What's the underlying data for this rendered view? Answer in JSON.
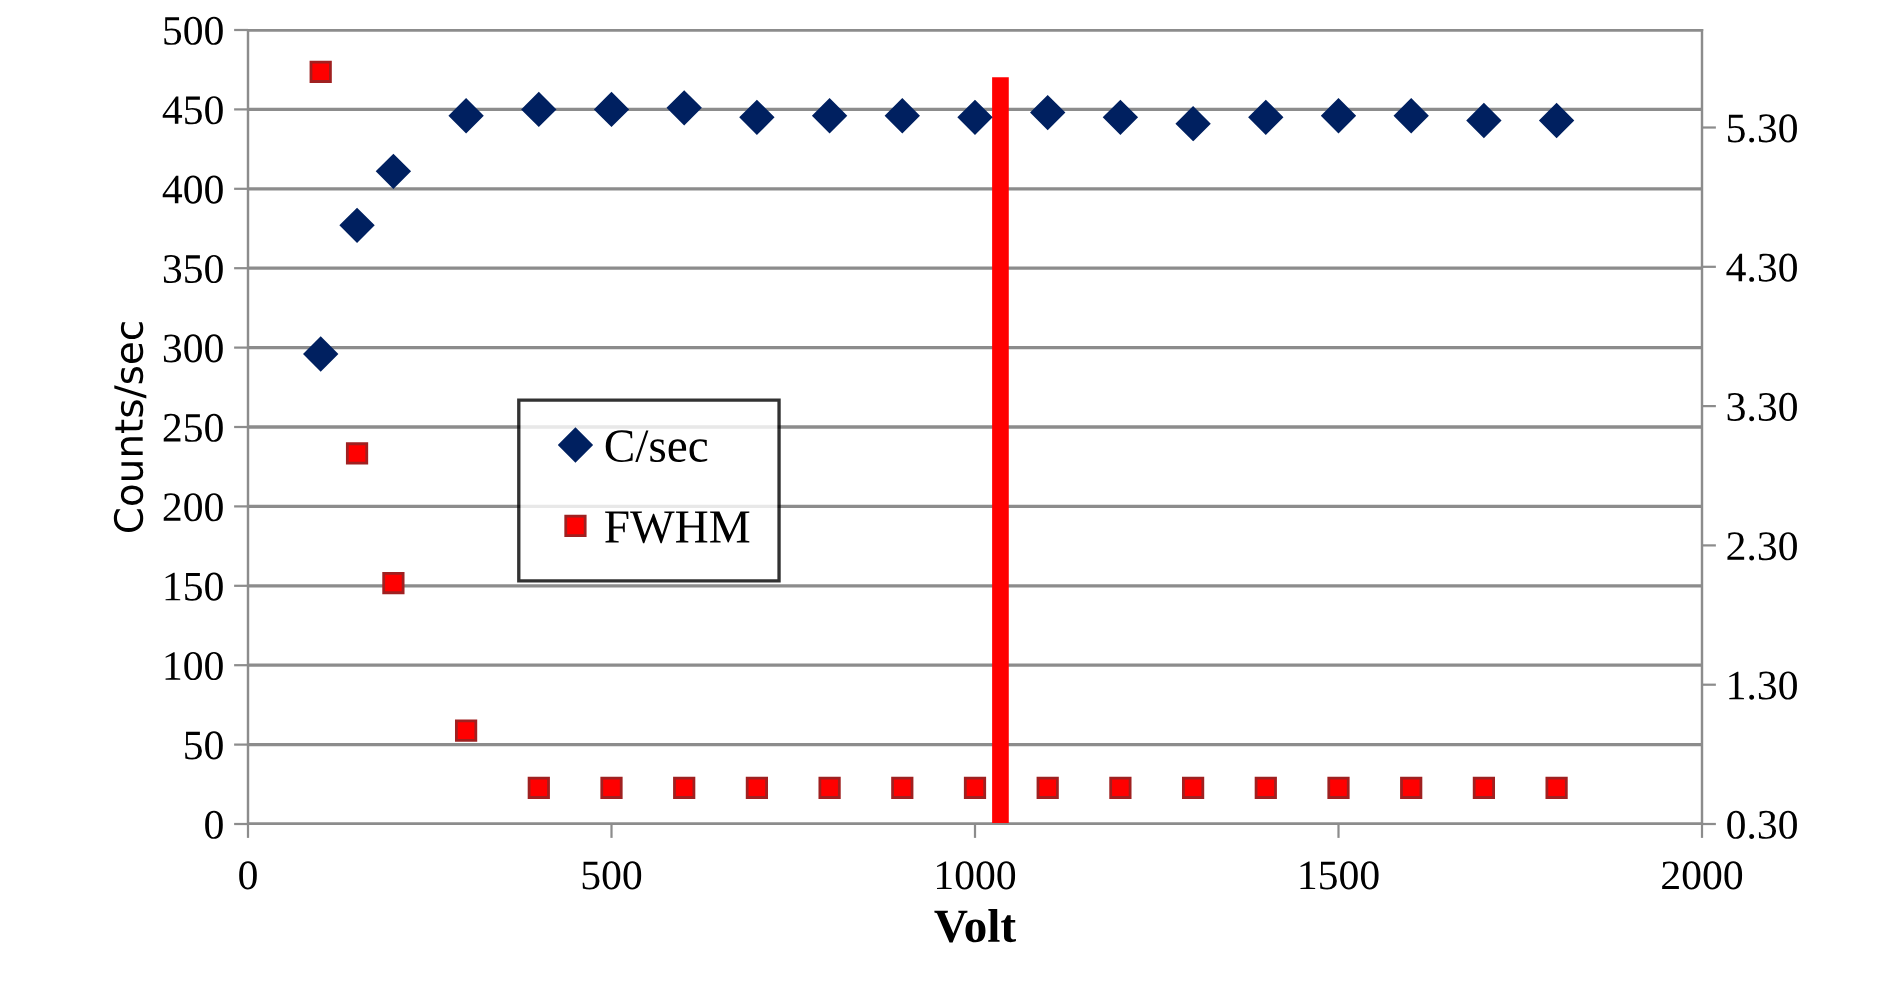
{
  "chart_data": {
    "type": "scatter",
    "xlabel": "Volt",
    "ylabel": "Counts/sec",
    "x": [
      100,
      150,
      200,
      300,
      400,
      500,
      600,
      700,
      800,
      900,
      1000,
      1100,
      1200,
      1300,
      1400,
      1500,
      1600,
      1700,
      1800
    ],
    "series": [
      {
        "name": "C/sec",
        "color": "#002060",
        "marker": "diamond",
        "values": [
          296,
          377,
          411,
          446,
          450,
          450,
          451,
          445,
          446,
          446,
          445,
          448,
          445,
          441,
          445,
          446,
          446,
          443,
          443
        ]
      },
      {
        "name": "FWHM",
        "color": "#ff0000",
        "marker": "square",
        "axis": "y2",
        "values": [
          5.7,
          2.96,
          2.03,
          0.97,
          0.56,
          0.56,
          0.56,
          0.56,
          0.56,
          0.56,
          0.56,
          0.56,
          0.56,
          0.56,
          0.56,
          0.56,
          0.56,
          0.56,
          0.56
        ]
      }
    ],
    "xlim": [
      0,
      2000
    ],
    "xticks": [
      0,
      500,
      1000,
      1500,
      2000
    ],
    "ylim": [
      0,
      500
    ],
    "yticks": [
      0,
      50,
      100,
      150,
      200,
      250,
      300,
      350,
      400,
      450,
      500
    ],
    "y2lim": [
      0.3,
      6.0
    ],
    "y2ticks": [
      {
        "value": 0.3,
        "label": "0.30"
      },
      {
        "value": 1.3,
        "label": "1.30"
      },
      {
        "value": 2.3,
        "label": "2.30"
      },
      {
        "value": 3.3,
        "label": "3.30"
      },
      {
        "value": 4.3,
        "label": "4.30"
      },
      {
        "value": 5.3,
        "label": "5.30"
      }
    ],
    "ref_lines": [
      {
        "axis": "x",
        "value": 1035,
        "color": "#ff0000"
      }
    ],
    "grid": "y",
    "legend": "center left"
  }
}
